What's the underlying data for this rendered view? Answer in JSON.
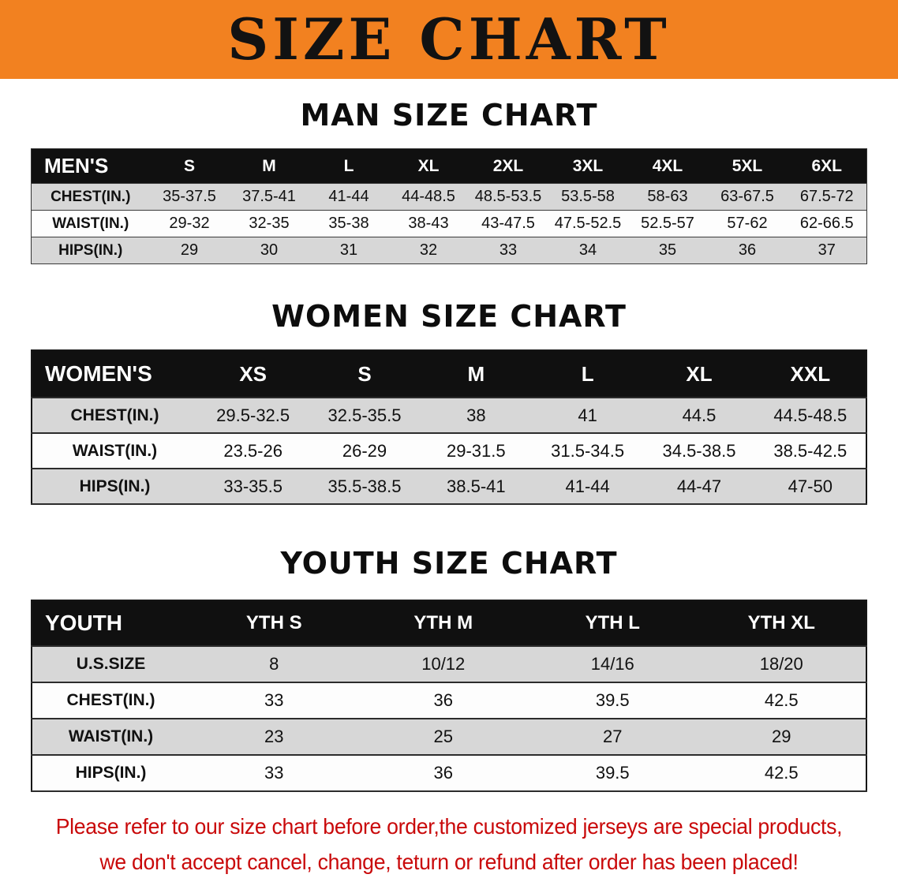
{
  "colors": {
    "banner_bg": "#f28120",
    "header_bar_bg": "#101010",
    "stripe_gray": "#d7d7d7",
    "footer_red": "#c9090a"
  },
  "banner": {
    "title": "SIZE CHART"
  },
  "men": {
    "title": "MAN SIZE CHART",
    "header": [
      "MEN'S",
      "S",
      "M",
      "L",
      "XL",
      "2XL",
      "3XL",
      "4XL",
      "5XL",
      "6XL"
    ],
    "rows": [
      [
        "CHEST(IN.)",
        "35-37.5",
        "37.5-41",
        "41-44",
        "44-48.5",
        "48.5-53.5",
        "53.5-58",
        "58-63",
        "63-67.5",
        "67.5-72"
      ],
      [
        "WAIST(IN.)",
        "29-32",
        "32-35",
        "35-38",
        "38-43",
        "43-47.5",
        "47.5-52.5",
        "52.5-57",
        "57-62",
        "62-66.5"
      ],
      [
        "HIPS(IN.)",
        "29",
        "30",
        "31",
        "32",
        "33",
        "34",
        "35",
        "36",
        "37"
      ]
    ]
  },
  "women": {
    "title": "WOMEN SIZE CHART",
    "header": [
      "WOMEN'S",
      "XS",
      "S",
      "M",
      "L",
      "XL",
      "XXL"
    ],
    "rows": [
      [
        "CHEST(IN.)",
        "29.5-32.5",
        "32.5-35.5",
        "38",
        "41",
        "44.5",
        "44.5-48.5"
      ],
      [
        "WAIST(IN.)",
        "23.5-26",
        "26-29",
        "29-31.5",
        "31.5-34.5",
        "34.5-38.5",
        "38.5-42.5"
      ],
      [
        "HIPS(IN.)",
        "33-35.5",
        "35.5-38.5",
        "38.5-41",
        "41-44",
        "44-47",
        "47-50"
      ]
    ]
  },
  "youth": {
    "title": "YOUTH SIZE CHART",
    "header": [
      "YOUTH",
      "YTH S",
      "YTH M",
      "YTH L",
      "YTH XL"
    ],
    "rows": [
      [
        "U.S.SIZE",
        "8",
        "10/12",
        "14/16",
        "18/20"
      ],
      [
        "CHEST(IN.)",
        "33",
        "36",
        "39.5",
        "42.5"
      ],
      [
        "WAIST(IN.)",
        "23",
        "25",
        "27",
        "29"
      ],
      [
        "HIPS(IN.)",
        "33",
        "36",
        "39.5",
        "42.5"
      ]
    ]
  },
  "footer": {
    "line1": "Please refer to our size chart before order,the customized jerseys are special products,",
    "line2": "we don't accept cancel, change, teturn or refund after order has been placed!"
  }
}
